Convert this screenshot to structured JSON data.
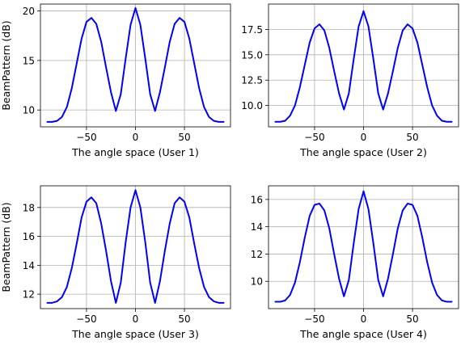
{
  "chart_data": [
    {
      "type": "line",
      "xlabel": "The angle space (User 1)",
      "ylabel": "BeamPattern (dB)",
      "xlim": [
        -97,
        97
      ],
      "ylim": [
        8.3,
        20.7
      ],
      "xticks": [
        -50,
        0,
        50
      ],
      "xtick_labels": [
        "−50",
        "0",
        "50"
      ],
      "yticks": [
        10,
        15,
        20
      ],
      "ytick_labels": [
        "10",
        "15",
        "20"
      ],
      "grid": true,
      "series": [
        {
          "color": "#0000ff",
          "x": [
            -90,
            -85,
            -80,
            -75,
            -70,
            -65,
            -60,
            -55,
            -50,
            -45,
            -40,
            -35,
            -30,
            -25,
            -20,
            -15,
            -10,
            -5,
            0,
            5,
            10,
            15,
            20,
            25,
            30,
            35,
            40,
            45,
            50,
            55,
            60,
            65,
            70,
            75,
            80,
            85,
            90
          ],
          "values": [
            8.8,
            8.8,
            8.9,
            9.3,
            10.3,
            12.2,
            14.7,
            17.2,
            18.9,
            19.3,
            18.7,
            16.9,
            14.3,
            11.8,
            9.9,
            11.6,
            15.2,
            18.6,
            20.3,
            18.6,
            15.2,
            11.6,
            9.9,
            11.8,
            14.3,
            16.9,
            18.7,
            19.3,
            18.9,
            17.2,
            14.7,
            12.2,
            10.3,
            9.3,
            8.9,
            8.8,
            8.8
          ]
        }
      ]
    },
    {
      "type": "line",
      "xlabel": "The angle space (User 2)",
      "ylabel": "",
      "xlim": [
        -97,
        97
      ],
      "ylim": [
        7.9,
        20.0
      ],
      "xticks": [
        -50,
        0,
        50
      ],
      "xtick_labels": [
        "−50",
        "0",
        "50"
      ],
      "yticks": [
        10.0,
        12.5,
        15.0,
        17.5
      ],
      "ytick_labels": [
        "10.0",
        "12.5",
        "15.0",
        "17.5"
      ],
      "grid": true,
      "series": [
        {
          "color": "#0000ff",
          "x": [
            -90,
            -85,
            -80,
            -75,
            -70,
            -65,
            -60,
            -55,
            -50,
            -45,
            -40,
            -35,
            -30,
            -25,
            -20,
            -15,
            -10,
            -5,
            0,
            5,
            10,
            15,
            20,
            25,
            30,
            35,
            40,
            45,
            50,
            55,
            60,
            65,
            70,
            75,
            80,
            85,
            90
          ],
          "values": [
            8.4,
            8.4,
            8.5,
            9.0,
            10.0,
            11.8,
            14.0,
            16.2,
            17.6,
            18.0,
            17.4,
            15.7,
            13.4,
            11.2,
            9.6,
            11.2,
            14.6,
            17.8,
            19.3,
            17.8,
            14.6,
            11.2,
            9.6,
            11.2,
            13.4,
            15.7,
            17.4,
            18.0,
            17.6,
            16.2,
            14.0,
            11.8,
            10.0,
            9.0,
            8.5,
            8.4,
            8.4
          ]
        }
      ]
    },
    {
      "type": "line",
      "xlabel": "The angle space (User 3)",
      "ylabel": "BeamPattern (dB)",
      "xlim": [
        -97,
        97
      ],
      "ylim": [
        11.0,
        19.5
      ],
      "xticks": [
        -50,
        0,
        50
      ],
      "xtick_labels": [
        "−50",
        "0",
        "50"
      ],
      "yticks": [
        12,
        14,
        16,
        18
      ],
      "ytick_labels": [
        "12",
        "14",
        "16",
        "18"
      ],
      "grid": true,
      "series": [
        {
          "color": "#0000ff",
          "x": [
            -90,
            -85,
            -80,
            -75,
            -70,
            -65,
            -60,
            -55,
            -50,
            -45,
            -40,
            -35,
            -30,
            -25,
            -20,
            -15,
            -10,
            -5,
            0,
            5,
            10,
            15,
            20,
            25,
            30,
            35,
            40,
            45,
            50,
            55,
            60,
            65,
            70,
            75,
            80,
            85,
            90
          ],
          "values": [
            11.4,
            11.4,
            11.5,
            11.8,
            12.5,
            13.8,
            15.5,
            17.3,
            18.4,
            18.7,
            18.3,
            16.9,
            15.0,
            12.9,
            11.4,
            12.8,
            15.6,
            18.0,
            19.2,
            18.0,
            15.6,
            12.8,
            11.4,
            12.9,
            15.0,
            16.9,
            18.3,
            18.7,
            18.4,
            17.3,
            15.5,
            13.8,
            12.5,
            11.8,
            11.5,
            11.4,
            11.4
          ]
        }
      ]
    },
    {
      "type": "line",
      "xlabel": "The angle space (User 4)",
      "ylabel": "",
      "xlim": [
        -97,
        97
      ],
      "ylim": [
        8.0,
        17.0
      ],
      "xticks": [
        -50,
        0,
        50
      ],
      "xtick_labels": [
        "−50",
        "0",
        "50"
      ],
      "yticks": [
        10,
        12,
        14,
        16
      ],
      "ytick_labels": [
        "10",
        "12",
        "14",
        "16"
      ],
      "grid": true,
      "series": [
        {
          "color": "#0000ff",
          "x": [
            -90,
            -85,
            -80,
            -75,
            -70,
            -65,
            -60,
            -55,
            -50,
            -45,
            -40,
            -35,
            -30,
            -25,
            -20,
            -15,
            -10,
            -5,
            0,
            5,
            10,
            15,
            20,
            25,
            30,
            35,
            40,
            45,
            50,
            55,
            60,
            65,
            70,
            75,
            80,
            85,
            90
          ],
          "values": [
            8.5,
            8.5,
            8.6,
            9.0,
            9.9,
            11.4,
            13.2,
            14.8,
            15.6,
            15.7,
            15.2,
            13.9,
            12.0,
            10.2,
            8.9,
            10.1,
            12.8,
            15.3,
            16.6,
            15.3,
            12.8,
            10.1,
            8.9,
            10.2,
            12.0,
            13.9,
            15.2,
            15.7,
            15.6,
            14.8,
            13.2,
            11.4,
            9.9,
            9.0,
            8.6,
            8.5,
            8.5
          ]
        }
      ]
    }
  ]
}
